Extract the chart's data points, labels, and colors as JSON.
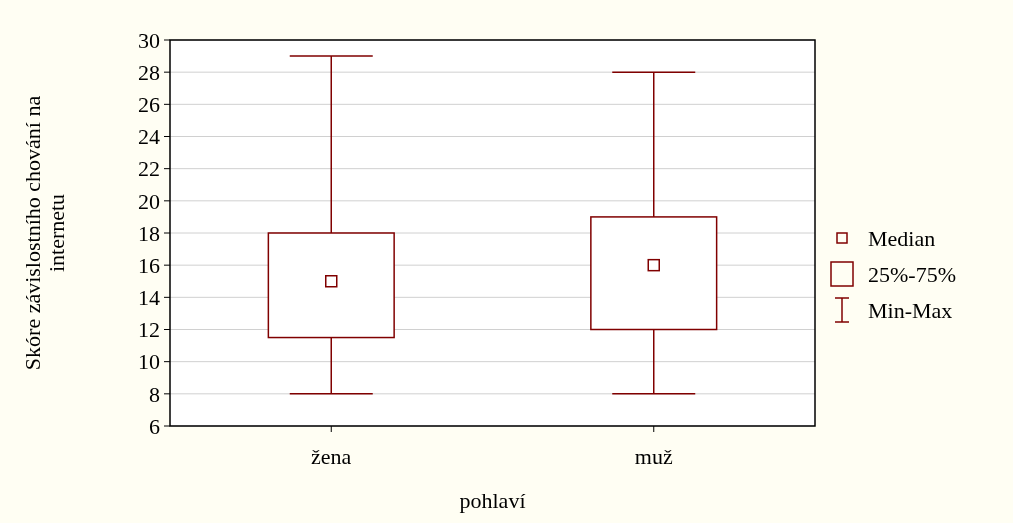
{
  "chart_data": {
    "type": "box",
    "categories": [
      "žena",
      "muž"
    ],
    "color": "#800000",
    "boxes": [
      {
        "low": 8,
        "q1": 11.5,
        "median": 15,
        "q3": 18,
        "high": 29
      },
      {
        "low": 8,
        "q1": 12,
        "median": 16,
        "q3": 19,
        "high": 28
      }
    ],
    "xlabel": "pohlaví",
    "ylabel": "Skóre závislostního chování na internetu",
    "ylim": [
      6,
      30
    ],
    "yticks": [
      6,
      8,
      10,
      12,
      14,
      16,
      18,
      20,
      22,
      24,
      26,
      28,
      30
    ],
    "grid": "y",
    "marker": "square",
    "annotations": [
      "Median",
      "25%-75%",
      "Min-Max"
    ]
  }
}
